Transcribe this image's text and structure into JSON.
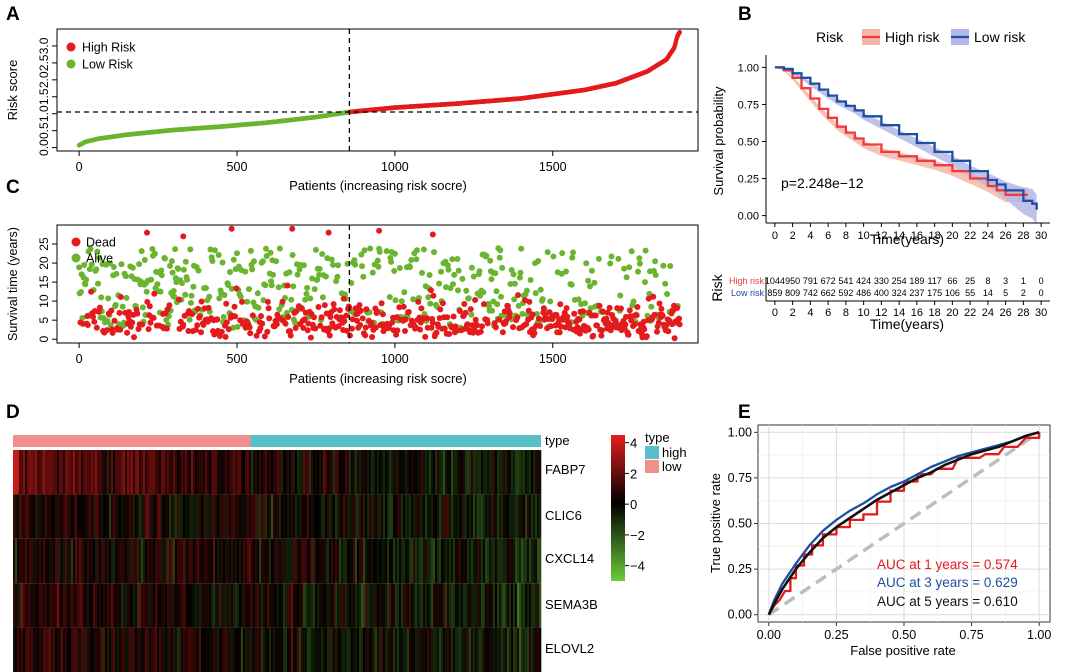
{
  "panels": {
    "a": "A",
    "b": "B",
    "c": "C",
    "d": "D",
    "e": "E"
  },
  "colors": {
    "high_risk": "#e41a1c",
    "low_risk": "#6ab42f",
    "dead": "#e41a1c",
    "alive": "#6ab42f",
    "km_high": "#ee3b3b",
    "km_high_band": "#f6b6a6",
    "km_low": "#1d4fa3",
    "km_low_band": "#b4b8e6",
    "type_high": "#56bfc8",
    "type_low": "#f0908b",
    "roc_1": "#e41a1c",
    "roc_3": "#1d4fa3",
    "roc_5": "#111111",
    "roc_diag": "#bdbdbd"
  },
  "chart_data": [
    {
      "id": "A",
      "type": "scatter",
      "title": "",
      "xlabel": "Patients (increasing risk socre)",
      "ylabel": "Risk score",
      "xlim": [
        -70,
        1960
      ],
      "ylim": [
        -0.1,
        3.5
      ],
      "xticks": [
        0,
        500,
        1000,
        1500
      ],
      "xtick_labels": [
        "0",
        "500",
        "1000",
        "1500"
      ],
      "yticks": [
        0,
        0.5,
        1,
        1.5,
        2,
        2.5,
        3
      ],
      "ytick_labels": [
        "0.0",
        "0.5",
        "1.0",
        "1.5",
        "2.0",
        "2.5",
        "3.0"
      ],
      "n_patients": 1903,
      "cutoff_index": 856,
      "cutoff_score": 1.05,
      "curve": [
        [
          0,
          0.07
        ],
        [
          20,
          0.17
        ],
        [
          60,
          0.26
        ],
        [
          150,
          0.38
        ],
        [
          300,
          0.52
        ],
        [
          450,
          0.62
        ],
        [
          600,
          0.74
        ],
        [
          750,
          0.9
        ],
        [
          856,
          1.05
        ],
        [
          1000,
          1.18
        ],
        [
          1200,
          1.3
        ],
        [
          1400,
          1.45
        ],
        [
          1600,
          1.7
        ],
        [
          1700,
          1.9
        ],
        [
          1800,
          2.25
        ],
        [
          1860,
          2.6
        ],
        [
          1885,
          2.95
        ],
        [
          1895,
          3.3
        ],
        [
          1903,
          3.42
        ]
      ],
      "legend": [
        {
          "label": "High Risk",
          "color_key": "high_risk"
        },
        {
          "label": "Low Risk",
          "color_key": "low_risk"
        }
      ],
      "legend_position": "top-left"
    },
    {
      "id": "B",
      "type": "line",
      "title": "",
      "xlabel": "Time(years)",
      "ylabel": "Survival probability",
      "xlim": [
        -1,
        31
      ],
      "ylim": [
        -0.05,
        1.05
      ],
      "xticks": [
        0,
        2,
        4,
        6,
        8,
        10,
        12,
        14,
        16,
        18,
        20,
        22,
        24,
        26,
        28,
        30
      ],
      "yticks": [
        0,
        0.25,
        0.5,
        0.75,
        1
      ],
      "ytick_labels": [
        "0.00",
        "0.25",
        "0.50",
        "0.75",
        "1.00"
      ],
      "pvalue_text": "p=2.248e−12",
      "legend_title": "Risk",
      "series": [
        {
          "name": "High risk",
          "color_key": "km_high",
          "band_key": "km_high_band",
          "points": [
            [
              0,
              1.0
            ],
            [
              1,
              0.98
            ],
            [
              2,
              0.93
            ],
            [
              3,
              0.86
            ],
            [
              4,
              0.79
            ],
            [
              5,
              0.72
            ],
            [
              6,
              0.66
            ],
            [
              7,
              0.6
            ],
            [
              8,
              0.56
            ],
            [
              9,
              0.52
            ],
            [
              10,
              0.48
            ],
            [
              12,
              0.43
            ],
            [
              14,
              0.4
            ],
            [
              16,
              0.37
            ],
            [
              18,
              0.34
            ],
            [
              20,
              0.3
            ],
            [
              22,
              0.25
            ],
            [
              24,
              0.2
            ],
            [
              25,
              0.17
            ],
            [
              26,
              0.14
            ],
            [
              28,
              0.14
            ],
            [
              28.5,
              0.14
            ]
          ],
          "band": [
            0.0,
            0.005,
            0.012,
            0.016,
            0.018,
            0.02,
            0.021,
            0.022,
            0.023,
            0.024,
            0.025,
            0.027,
            0.028,
            0.029,
            0.03,
            0.032,
            0.035,
            0.04,
            0.045,
            0.05,
            0.05,
            0.05
          ]
        },
        {
          "name": "Low risk",
          "color_key": "km_low",
          "band_key": "km_low_band",
          "points": [
            [
              0,
              1.0
            ],
            [
              1,
              0.99
            ],
            [
              2,
              0.96
            ],
            [
              3,
              0.93
            ],
            [
              4,
              0.89
            ],
            [
              5,
              0.85
            ],
            [
              6,
              0.81
            ],
            [
              7,
              0.77
            ],
            [
              8,
              0.74
            ],
            [
              9,
              0.71
            ],
            [
              10,
              0.67
            ],
            [
              12,
              0.61
            ],
            [
              14,
              0.55
            ],
            [
              16,
              0.49
            ],
            [
              18,
              0.43
            ],
            [
              20,
              0.37
            ],
            [
              22,
              0.3
            ],
            [
              24,
              0.24
            ],
            [
              25,
              0.21
            ],
            [
              26,
              0.17
            ],
            [
              28,
              0.1
            ],
            [
              29,
              0.08
            ],
            [
              29.5,
              0.04
            ]
          ],
          "band": [
            0.0,
            0.004,
            0.008,
            0.012,
            0.015,
            0.017,
            0.019,
            0.02,
            0.021,
            0.022,
            0.023,
            0.025,
            0.027,
            0.029,
            0.031,
            0.034,
            0.038,
            0.045,
            0.05,
            0.06,
            0.09,
            0.1,
            0.1
          ]
        }
      ]
    },
    {
      "id": "B-table",
      "type": "table",
      "row_title": "Risk",
      "xlabel": "Time(years)",
      "times": [
        0,
        2,
        4,
        6,
        8,
        10,
        12,
        14,
        16,
        18,
        20,
        22,
        24,
        26,
        28,
        30
      ],
      "rows": [
        {
          "name": "High risk",
          "color_key": "km_high",
          "values": [
            1044,
            950,
            791,
            672,
            541,
            424,
            330,
            254,
            189,
            117,
            66,
            25,
            8,
            3,
            1,
            0
          ]
        },
        {
          "name": "Low risk",
          "color_key": "km_low",
          "values": [
            859,
            809,
            742,
            662,
            592,
            486,
            400,
            324,
            237,
            175,
            106,
            55,
            14,
            5,
            2,
            0
          ]
        }
      ]
    },
    {
      "id": "C",
      "type": "scatter",
      "title": "",
      "xlabel": "Patients (increasing risk socre)",
      "ylabel": "Survival time (years)",
      "xlim": [
        -70,
        1960
      ],
      "ylim": [
        -1,
        30
      ],
      "xticks": [
        0,
        500,
        1000,
        1500
      ],
      "xtick_labels": [
        "0",
        "500",
        "1000",
        "1500"
      ],
      "yticks": [
        0,
        5,
        10,
        15,
        20,
        25
      ],
      "ytick_labels": [
        "0",
        "5",
        "10",
        "15",
        "20",
        "25"
      ],
      "n_patients": 1903,
      "cutoff_index": 856,
      "legend": [
        {
          "label": "Dead",
          "color_key": "dead"
        },
        {
          "label": "Alive",
          "color_key": "alive"
        }
      ],
      "legend_position": "top-left"
    },
    {
      "id": "D",
      "type": "heatmap",
      "genes": [
        "FABP7",
        "CLIC6",
        "CXCL14",
        "SEMA3B",
        "ELOVL2"
      ],
      "annotation_label": "type",
      "legend_title": "type",
      "legend_types": [
        {
          "label": "high",
          "color_key": "type_high"
        },
        {
          "label": "low",
          "color_key": "type_low"
        }
      ],
      "colorbar": {
        "min": -5,
        "max": 4.5,
        "ticks": [
          4,
          2,
          0,
          -2,
          -4
        ],
        "tick_labels": [
          "4",
          "2",
          "0",
          "−2",
          "−4"
        ]
      },
      "split_fraction": 0.45
    },
    {
      "id": "E",
      "type": "line",
      "title": "",
      "xlabel": "False positive rate",
      "ylabel": "True positive rate",
      "xlim": [
        -0.04,
        1.04
      ],
      "ylim": [
        -0.04,
        1.04
      ],
      "xticks": [
        0,
        0.25,
        0.5,
        0.75,
        1
      ],
      "xtick_labels": [
        "0.00",
        "0.25",
        "0.50",
        "0.75",
        "1.00"
      ],
      "yticks": [
        0,
        0.25,
        0.5,
        0.75,
        1
      ],
      "ytick_labels": [
        "0.00",
        "0.25",
        "0.50",
        "0.75",
        "1.00"
      ],
      "series": [
        {
          "name": "AUC at 1 years = 0.574",
          "color_key": "roc_1",
          "points": [
            [
              0,
              0
            ],
            [
              0.02,
              0.05
            ],
            [
              0.04,
              0.08
            ],
            [
              0.06,
              0.13
            ],
            [
              0.08,
              0.13
            ],
            [
              0.08,
              0.2
            ],
            [
              0.1,
              0.2
            ],
            [
              0.1,
              0.27
            ],
            [
              0.13,
              0.27
            ],
            [
              0.13,
              0.33
            ],
            [
              0.16,
              0.33
            ],
            [
              0.16,
              0.38
            ],
            [
              0.2,
              0.38
            ],
            [
              0.2,
              0.44
            ],
            [
              0.25,
              0.44
            ],
            [
              0.25,
              0.48
            ],
            [
              0.3,
              0.48
            ],
            [
              0.3,
              0.52
            ],
            [
              0.35,
              0.52
            ],
            [
              0.35,
              0.55
            ],
            [
              0.4,
              0.55
            ],
            [
              0.4,
              0.62
            ],
            [
              0.45,
              0.62
            ],
            [
              0.45,
              0.68
            ],
            [
              0.5,
              0.68
            ],
            [
              0.5,
              0.73
            ],
            [
              0.55,
              0.73
            ],
            [
              0.55,
              0.77
            ],
            [
              0.6,
              0.77
            ],
            [
              0.62,
              0.8
            ],
            [
              0.68,
              0.8
            ],
            [
              0.7,
              0.86
            ],
            [
              0.78,
              0.86
            ],
            [
              0.8,
              0.88
            ],
            [
              0.85,
              0.88
            ],
            [
              0.87,
              0.92
            ],
            [
              0.92,
              0.92
            ],
            [
              0.95,
              0.97
            ],
            [
              1,
              0.97
            ],
            [
              1,
              1
            ]
          ]
        },
        {
          "name": "AUC at 3 years = 0.629",
          "color_key": "roc_3",
          "points": [
            [
              0,
              0
            ],
            [
              0.02,
              0.08
            ],
            [
              0.05,
              0.17
            ],
            [
              0.1,
              0.28
            ],
            [
              0.15,
              0.38
            ],
            [
              0.2,
              0.46
            ],
            [
              0.25,
              0.52
            ],
            [
              0.3,
              0.57
            ],
            [
              0.35,
              0.61
            ],
            [
              0.4,
              0.66
            ],
            [
              0.45,
              0.7
            ],
            [
              0.5,
              0.73
            ],
            [
              0.55,
              0.77
            ],
            [
              0.6,
              0.81
            ],
            [
              0.65,
              0.84
            ],
            [
              0.7,
              0.87
            ],
            [
              0.75,
              0.89
            ],
            [
              0.8,
              0.91
            ],
            [
              0.85,
              0.93
            ],
            [
              0.9,
              0.95
            ],
            [
              0.95,
              0.98
            ],
            [
              1,
              1
            ]
          ]
        },
        {
          "name": "AUC at 5 years = 0.610",
          "color_key": "roc_5",
          "points": [
            [
              0,
              0
            ],
            [
              0.02,
              0.06
            ],
            [
              0.05,
              0.14
            ],
            [
              0.1,
              0.25
            ],
            [
              0.15,
              0.34
            ],
            [
              0.2,
              0.42
            ],
            [
              0.25,
              0.48
            ],
            [
              0.3,
              0.53
            ],
            [
              0.35,
              0.58
            ],
            [
              0.4,
              0.63
            ],
            [
              0.45,
              0.67
            ],
            [
              0.5,
              0.71
            ],
            [
              0.55,
              0.75
            ],
            [
              0.6,
              0.78
            ],
            [
              0.65,
              0.82
            ],
            [
              0.7,
              0.85
            ],
            [
              0.75,
              0.88
            ],
            [
              0.8,
              0.9
            ],
            [
              0.85,
              0.92
            ],
            [
              0.9,
              0.95
            ],
            [
              0.95,
              0.98
            ],
            [
              1,
              1
            ]
          ]
        }
      ],
      "diagonal": true,
      "grid": true,
      "legend_position": "bottom-right"
    }
  ]
}
